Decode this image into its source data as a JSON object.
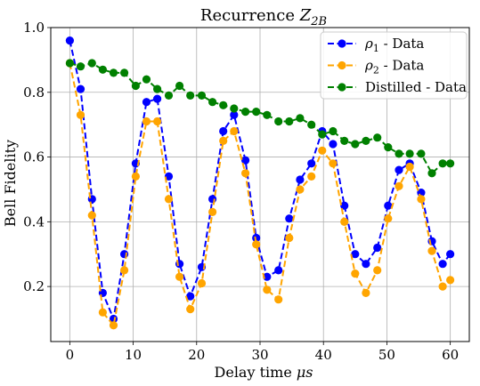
{
  "chart_data": {
    "type": "line",
    "title": "Recurrence ",
    "title_math": "Z",
    "title_sub": "2B",
    "xlabel": "Delay time ",
    "xlabel_unit": "μs",
    "ylabel": "Bell Fidelity",
    "xlim": [
      -3,
      63
    ],
    "ylim": [
      0.03,
      1.0
    ],
    "xticks": [
      0,
      10,
      20,
      30,
      40,
      50,
      60
    ],
    "yticks": [
      0.2,
      0.4,
      0.6,
      0.8,
      1.0
    ],
    "xtick_labels": [
      "0",
      "10",
      "20",
      "30",
      "40",
      "50",
      "60"
    ],
    "ytick_labels": [
      "0.2",
      "0.4",
      "0.6",
      "0.8",
      "1.0"
    ],
    "grid": true,
    "legend_position": "top-right",
    "x": [
      0,
      1.7,
      3.5,
      5.2,
      6.9,
      8.6,
      10.4,
      12.1,
      13.8,
      15.6,
      17.3,
      19.0,
      20.8,
      22.5,
      24.2,
      25.9,
      27.7,
      29.4,
      31.1,
      32.9,
      34.6,
      36.3,
      38.1,
      39.8,
      41.5,
      43.3,
      45.0,
      46.7,
      48.5,
      50.2,
      51.9,
      53.6,
      55.4,
      57.1,
      58.8,
      60.0
    ],
    "series": [
      {
        "name": "ρ1 - Data",
        "label_base": "ρ",
        "label_sub": "1",
        "label_rest": " - Data",
        "color": "#0000ff",
        "values": [
          0.96,
          0.81,
          0.47,
          0.18,
          0.1,
          0.3,
          0.58,
          0.77,
          0.78,
          0.54,
          0.27,
          0.17,
          0.26,
          0.47,
          0.68,
          0.73,
          0.59,
          0.35,
          0.23,
          0.25,
          0.41,
          0.53,
          0.58,
          0.68,
          0.64,
          0.45,
          0.3,
          0.27,
          0.32,
          0.45,
          0.56,
          0.58,
          0.49,
          0.34,
          0.27,
          0.3
        ]
      },
      {
        "name": "ρ2 - Data",
        "label_base": "ρ",
        "label_sub": "2",
        "label_rest": " - Data",
        "color": "#ffa500",
        "values": [
          0.89,
          0.73,
          0.42,
          0.12,
          0.08,
          0.25,
          0.54,
          0.71,
          0.71,
          0.47,
          0.23,
          0.13,
          0.21,
          0.43,
          0.65,
          0.68,
          0.55,
          0.33,
          0.19,
          0.16,
          0.35,
          0.5,
          0.54,
          0.62,
          0.58,
          0.4,
          0.24,
          0.18,
          0.25,
          0.41,
          0.51,
          0.57,
          0.47,
          0.31,
          0.2,
          0.22
        ]
      },
      {
        "name": "Distilled - Data",
        "label_base": "Distilled - Data",
        "label_sub": "",
        "label_rest": "",
        "color": "#008000",
        "values": [
          0.89,
          0.88,
          0.89,
          0.87,
          0.86,
          0.86,
          0.82,
          0.84,
          0.81,
          0.79,
          0.82,
          0.79,
          0.79,
          0.77,
          0.76,
          0.75,
          0.74,
          0.74,
          0.73,
          0.71,
          0.71,
          0.72,
          0.7,
          0.67,
          0.68,
          0.65,
          0.64,
          0.65,
          0.66,
          0.63,
          0.61,
          0.61,
          0.61,
          0.55,
          0.58,
          0.58
        ]
      }
    ]
  }
}
